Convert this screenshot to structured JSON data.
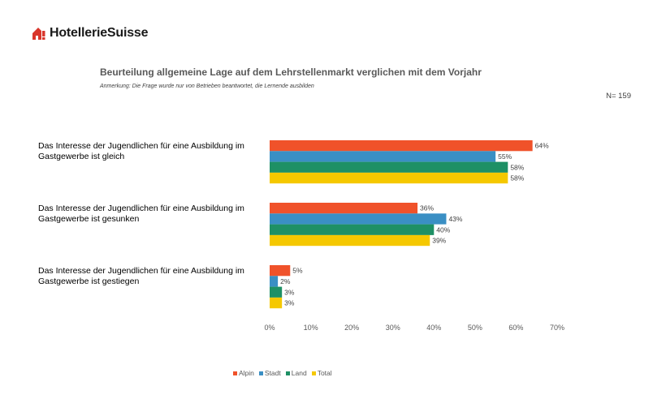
{
  "brand": {
    "name": "HotellerieSuisse",
    "color": "#D9362B"
  },
  "chart_data": {
    "type": "bar",
    "orientation": "horizontal",
    "title": "Beurteilung allgemeine Lage auf dem Lehrstellenmarkt verglichen mit dem Vorjahr",
    "subtitle": "Anmerkung: Die Frage wurde nur von Betrieben beantwortet, die Lernende ausbilden",
    "n_label": "N= 159",
    "categories": [
      "Das Interesse der Jugendlichen für eine Ausbildung im Gastgewerbe ist gleich",
      "Das Interesse der Jugendlichen für eine Ausbildung im Gastgewerbe ist gesunken",
      "Das Interesse der Jugendlichen für eine Ausbildung im Gastgewerbe ist gestiegen"
    ],
    "series": [
      {
        "name": "Alpin",
        "color": "#F0522A",
        "values": [
          64,
          36,
          5
        ]
      },
      {
        "name": "Stadt",
        "color": "#3A8FC4",
        "values": [
          55,
          43,
          2
        ]
      },
      {
        "name": "Land",
        "color": "#1E9065",
        "values": [
          58,
          40,
          3
        ]
      },
      {
        "name": "Total",
        "color": "#F5C800",
        "values": [
          58,
          39,
          3
        ]
      }
    ],
    "xlim": [
      0,
      70
    ],
    "xticks": [
      "0%",
      "10%",
      "20%",
      "30%",
      "40%",
      "50%",
      "60%",
      "70%"
    ],
    "legend_position": "bottom",
    "grid": false
  }
}
